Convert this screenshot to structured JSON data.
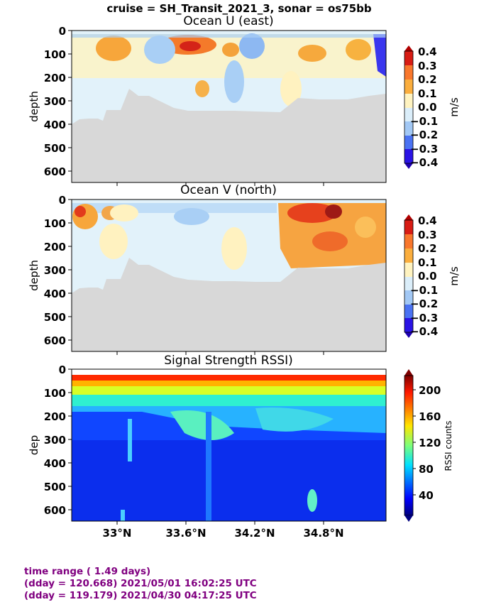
{
  "figure": {
    "suptitle": "cruise = SH_Transit_2021_3,  sonar = os75bb"
  },
  "chart_data": [
    {
      "type": "heatmap",
      "title": "Ocean U (east)",
      "ylabel": "depth",
      "colorbar_label": "m/s",
      "colormap": "diverging blue-white-red",
      "ylim": [
        650,
        0
      ],
      "yticks": [
        0,
        100,
        200,
        300,
        400,
        500,
        600
      ],
      "ytick_labels": [
        "0",
        "100",
        "200",
        "300",
        "400",
        "500",
        "600"
      ],
      "xticks": [
        33.0,
        33.6,
        34.2,
        34.8
      ],
      "xtick_labels": [
        "",
        "",
        "",
        ""
      ],
      "clim": [
        -0.4,
        0.4
      ],
      "colorbar_ticks": [
        0.4,
        0.3,
        0.2,
        0.1,
        0.0,
        -0.1,
        -0.2,
        -0.3,
        -0.4
      ],
      "colorbar_tick_labels": [
        "0.4",
        "0.3",
        "0.2",
        "0.1",
        "0.0",
        "−0.1",
        "−0.2",
        "−0.3",
        "−0.4"
      ],
      "bottom_mask": "seafloor (gray)"
    },
    {
      "type": "heatmap",
      "title": "Ocean V (north)",
      "ylabel": "depth",
      "colorbar_label": "m/s",
      "colormap": "diverging blue-white-red",
      "ylim": [
        650,
        0
      ],
      "yticks": [
        0,
        100,
        200,
        300,
        400,
        500,
        600
      ],
      "ytick_labels": [
        "0",
        "100",
        "200",
        "300",
        "400",
        "500",
        "600"
      ],
      "xticks": [
        33.0,
        33.6,
        34.2,
        34.8
      ],
      "xtick_labels": [
        "",
        "",
        "",
        ""
      ],
      "clim": [
        -0.4,
        0.4
      ],
      "colorbar_ticks": [
        0.4,
        0.3,
        0.2,
        0.1,
        0.0,
        -0.1,
        -0.2,
        -0.3,
        -0.4
      ],
      "colorbar_tick_labels": [
        "0.4",
        "0.3",
        "0.2",
        "0.1",
        "0.0",
        "−0.1",
        "−0.2",
        "−0.3",
        "−0.4"
      ],
      "bottom_mask": "seafloor (gray)"
    },
    {
      "type": "heatmap",
      "title": "Signal Strength RSSI)",
      "ylabel": "dep",
      "colorbar_label": "RSSI counts",
      "colormap": "jet",
      "ylim": [
        650,
        0
      ],
      "yticks": [
        0,
        100,
        200,
        300,
        400,
        500,
        600
      ],
      "ytick_labels": [
        "0",
        "100",
        "200",
        "300",
        "400",
        "500",
        "600"
      ],
      "xticks": [
        33.0,
        33.6,
        34.2,
        34.8
      ],
      "xtick_labels": [
        "33°N",
        "33.6°N",
        "34.2°N",
        "34.8°N"
      ],
      "clim": [
        10,
        220
      ],
      "colorbar_ticks": [
        200,
        160,
        120,
        80,
        40
      ],
      "colorbar_tick_labels": [
        "200",
        "160",
        "120",
        "80",
        "40"
      ]
    }
  ],
  "footer": {
    "line1": "time range ( 1.49 days)",
    "line2": "(dday = 120.668) 2021/05/01 16:02:25 UTC",
    "line3": "(dday = 119.179) 2021/04/30 04:17:25 UTC"
  },
  "colors": {
    "seafloor": "#d8d8d8",
    "footer_text": "#800080"
  }
}
